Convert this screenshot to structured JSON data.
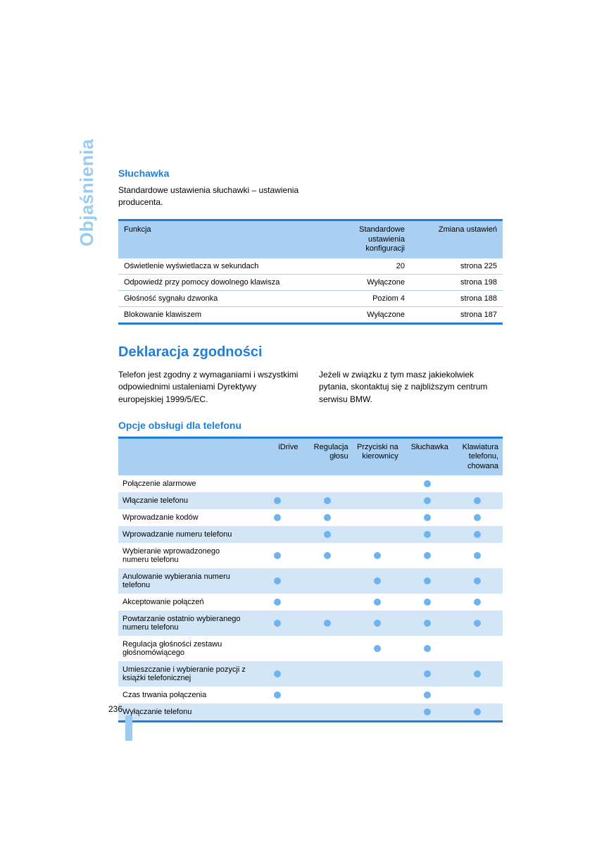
{
  "sidebar_title": "Objaśnienia",
  "section1": {
    "heading": "Słuchawka",
    "text": "Standardowe ustawienia słuchawki – ustawienia producenta."
  },
  "table1": {
    "headers": [
      "Funkcja",
      "Standardowe ustawienia konfiguracji",
      "Zmiana ustawień"
    ],
    "rows": [
      [
        "Oświetlenie wyświetlacza w sekundach",
        "20",
        "strona 225"
      ],
      [
        "Odpowiedź przy pomocy dowolnego klawisza",
        "Wyłączone",
        "strona 198"
      ],
      [
        "Głośność sygnału dzwonka",
        "Poziom 4",
        "strona 188"
      ],
      [
        "Blokowanie klawiszem",
        "Wyłączone",
        "strona 187"
      ]
    ]
  },
  "section2": {
    "heading": "Deklaracja zgodności",
    "col1": "Telefon jest zgodny z wymaganiami i wszystkimi odpowiednimi ustaleniami Dyrektywy europejskiej 1999/5/EC.",
    "col2": "Jeżeli w związku z tym masz jakiekolwiek pytania, skontaktuj się z najbliższym centrum serwisu BMW."
  },
  "section3": {
    "heading": "Opcje obsługi dla telefonu"
  },
  "table2": {
    "headers": [
      "",
      "iDrive",
      "Regulacja głosu",
      "Przyciski na kierownicy",
      "Słuchawka",
      "Klawiatura telefonu, chowana"
    ],
    "rows": [
      {
        "label": "Połączenie alarmowe",
        "dots": [
          0,
          0,
          0,
          1,
          0
        ],
        "alt": false
      },
      {
        "label": "Włączanie telefonu",
        "dots": [
          1,
          1,
          0,
          1,
          1
        ],
        "alt": true
      },
      {
        "label": "Wprowadzanie kodów",
        "dots": [
          1,
          1,
          0,
          1,
          1
        ],
        "alt": false
      },
      {
        "label": "Wprowadzanie numeru telefonu",
        "dots": [
          0,
          1,
          0,
          1,
          1
        ],
        "alt": true
      },
      {
        "label": "Wybieranie wprowadzonego numeru telefonu",
        "dots": [
          1,
          1,
          1,
          1,
          1
        ],
        "alt": false
      },
      {
        "label": "Anulowanie wybierania numeru telefonu",
        "dots": [
          1,
          0,
          1,
          1,
          1
        ],
        "alt": true
      },
      {
        "label": "Akceptowanie połączeń",
        "dots": [
          1,
          0,
          1,
          1,
          1
        ],
        "alt": false
      },
      {
        "label": "Powtarzanie ostatnio wybieranego numeru telefonu",
        "dots": [
          1,
          1,
          1,
          1,
          1
        ],
        "alt": true
      },
      {
        "label": "Regulacja głośności zestawu głośnomówiącego",
        "dots": [
          0,
          0,
          1,
          1,
          0
        ],
        "alt": false
      },
      {
        "label": "Umieszczanie i wybieranie pozycji z książki telefonicznej",
        "dots": [
          1,
          0,
          0,
          1,
          1
        ],
        "alt": true
      },
      {
        "label": "Czas trwania połączenia",
        "dots": [
          1,
          0,
          0,
          1,
          0
        ],
        "alt": false
      },
      {
        "label": "Wyłączanie telefonu",
        "dots": [
          0,
          0,
          0,
          1,
          1
        ],
        "alt": true
      }
    ]
  },
  "page_number": "236"
}
